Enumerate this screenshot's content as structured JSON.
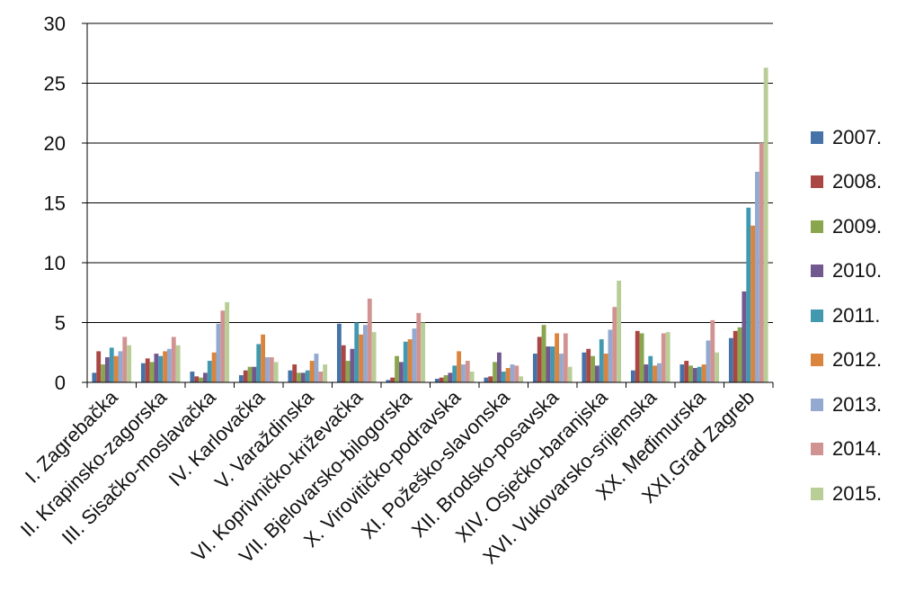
{
  "chart_data": {
    "type": "bar",
    "title": "",
    "xlabel": "",
    "ylabel": "",
    "ylim": [
      0,
      30
    ],
    "yticks": [
      0,
      5,
      10,
      15,
      20,
      25,
      30
    ],
    "grid": true,
    "legend_position": "right",
    "categories": [
      "I. Zagrebačka",
      "II. Krapinsko-zagorska",
      "III. Sisačko-moslavačka",
      "IV. Karlovačka",
      "V. Varaždinska",
      "VI. Koprivničko-križevačka",
      "VII. Bjelovarsko-bilogorska",
      "X. Virovitičko-podravska",
      "XI. Požeško-slavonska",
      "XII. Brodsko-posavska",
      "XIV. Osječko-baranjska",
      "XVI. Vukovarsko-srijemska",
      "XX. Međimurska",
      "XXI.Grad Zagreb"
    ],
    "series": [
      {
        "name": "2007.",
        "color": "#4572A7",
        "values": [
          0.8,
          1.6,
          0.9,
          0.6,
          1.0,
          4.9,
          0.2,
          0.3,
          0.4,
          2.4,
          2.5,
          1.0,
          1.5,
          3.7
        ]
      },
      {
        "name": "2008.",
        "color": "#AA4643",
        "values": [
          2.6,
          2.0,
          0.5,
          1.0,
          1.5,
          3.1,
          0.4,
          0.4,
          0.5,
          3.8,
          2.8,
          4.3,
          1.8,
          4.3
        ]
      },
      {
        "name": "2009.",
        "color": "#89A54E",
        "values": [
          1.5,
          1.7,
          0.4,
          1.3,
          0.8,
          1.8,
          2.2,
          0.6,
          1.7,
          4.8,
          2.2,
          4.1,
          1.4,
          4.6
        ]
      },
      {
        "name": "2010.",
        "color": "#71588F",
        "values": [
          2.1,
          2.4,
          0.8,
          1.3,
          0.8,
          2.8,
          1.7,
          0.8,
          2.5,
          3.0,
          1.4,
          1.5,
          1.2,
          7.6
        ]
      },
      {
        "name": "2011.",
        "color": "#4198AF",
        "values": [
          2.9,
          2.2,
          1.8,
          3.2,
          1.0,
          5.0,
          3.4,
          1.4,
          0.9,
          3.0,
          3.6,
          2.2,
          1.3,
          14.6
        ]
      },
      {
        "name": "2012.",
        "color": "#DB843D",
        "values": [
          2.2,
          2.6,
          2.5,
          4.0,
          1.8,
          4.0,
          3.6,
          2.6,
          1.2,
          4.1,
          2.4,
          1.4,
          1.5,
          13.1
        ]
      },
      {
        "name": "2013.",
        "color": "#93A9CF",
        "values": [
          2.6,
          2.8,
          4.9,
          2.1,
          2.4,
          4.8,
          4.5,
          1.5,
          1.5,
          2.4,
          4.4,
          1.6,
          3.5,
          17.6
        ]
      },
      {
        "name": "2014.",
        "color": "#D19392",
        "values": [
          3.8,
          3.8,
          6.0,
          2.1,
          0.9,
          7.0,
          5.8,
          1.8,
          1.4,
          4.1,
          6.3,
          4.1,
          5.2,
          20.0
        ]
      },
      {
        "name": "2015.",
        "color": "#B9CD96",
        "values": [
          3.1,
          3.1,
          6.7,
          1.7,
          1.5,
          4.2,
          5.0,
          0.9,
          0.5,
          1.3,
          8.5,
          4.2,
          2.5,
          26.3
        ]
      }
    ]
  }
}
